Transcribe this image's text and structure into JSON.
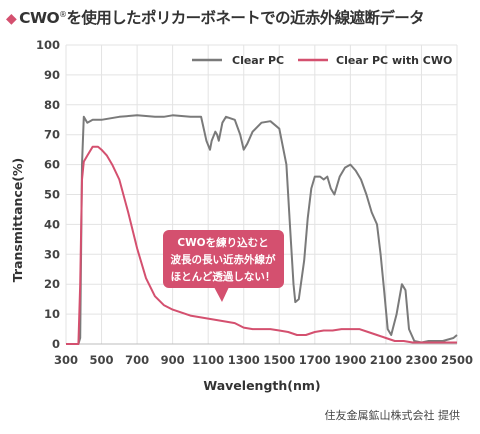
{
  "header": {
    "title_prefix": "CWO",
    "title_reg": "®",
    "title_suffix": "を使用したポリカーボネートでの近赤外線遮断データ"
  },
  "callout": {
    "lines": [
      "CWOを練り込むと",
      "波長の長い近赤外線が",
      "ほとんど透過しない！"
    ],
    "color": "#d4506f"
  },
  "credit": "住友金属鉱山株式会社 提供",
  "chart_data": {
    "type": "line",
    "xlabel": "Wavelength(nm)",
    "ylabel": "Transmittance(%)",
    "xlim": [
      300,
      2500
    ],
    "ylim": [
      0,
      100
    ],
    "xticks": [
      300,
      500,
      700,
      900,
      1100,
      1300,
      1500,
      1700,
      1900,
      2100,
      2300,
      2500
    ],
    "yticks": [
      0,
      10,
      20,
      30,
      40,
      50,
      60,
      70,
      80,
      90,
      100
    ],
    "grid": true,
    "legend_position": "top-right",
    "series": [
      {
        "name": "Clear PC",
        "color": "#7a7a7a",
        "points": [
          [
            300,
            0
          ],
          [
            370,
            0
          ],
          [
            380,
            2
          ],
          [
            390,
            60
          ],
          [
            400,
            76
          ],
          [
            420,
            74
          ],
          [
            450,
            75
          ],
          [
            500,
            75
          ],
          [
            600,
            76
          ],
          [
            700,
            76.5
          ],
          [
            800,
            76
          ],
          [
            850,
            76
          ],
          [
            900,
            76.5
          ],
          [
            1000,
            76
          ],
          [
            1060,
            76
          ],
          [
            1090,
            68
          ],
          [
            1110,
            65
          ],
          [
            1120,
            68
          ],
          [
            1140,
            71
          ],
          [
            1150,
            70
          ],
          [
            1160,
            68
          ],
          [
            1180,
            74
          ],
          [
            1200,
            76
          ],
          [
            1250,
            75
          ],
          [
            1280,
            70
          ],
          [
            1300,
            65
          ],
          [
            1320,
            67
          ],
          [
            1350,
            71
          ],
          [
            1400,
            74
          ],
          [
            1450,
            74.5
          ],
          [
            1500,
            72
          ],
          [
            1540,
            60
          ],
          [
            1560,
            40
          ],
          [
            1580,
            20
          ],
          [
            1590,
            14
          ],
          [
            1610,
            15
          ],
          [
            1640,
            28
          ],
          [
            1660,
            42
          ],
          [
            1680,
            52
          ],
          [
            1700,
            56
          ],
          [
            1730,
            56
          ],
          [
            1750,
            55
          ],
          [
            1770,
            56
          ],
          [
            1790,
            52
          ],
          [
            1810,
            50
          ],
          [
            1840,
            56
          ],
          [
            1870,
            59
          ],
          [
            1900,
            60
          ],
          [
            1930,
            58
          ],
          [
            1960,
            55
          ],
          [
            1990,
            50
          ],
          [
            2020,
            44
          ],
          [
            2050,
            40
          ],
          [
            2070,
            30
          ],
          [
            2090,
            18
          ],
          [
            2110,
            5
          ],
          [
            2130,
            3
          ],
          [
            2160,
            10
          ],
          [
            2190,
            20
          ],
          [
            2210,
            18
          ],
          [
            2230,
            5
          ],
          [
            2260,
            1
          ],
          [
            2300,
            0.5
          ],
          [
            2340,
            1
          ],
          [
            2380,
            1
          ],
          [
            2420,
            1
          ],
          [
            2450,
            1.5
          ],
          [
            2480,
            2
          ],
          [
            2500,
            3
          ]
        ]
      },
      {
        "name": "Clear PC with CWO",
        "color": "#d4506f",
        "points": [
          [
            300,
            0
          ],
          [
            370,
            0
          ],
          [
            380,
            20
          ],
          [
            390,
            55
          ],
          [
            400,
            61
          ],
          [
            420,
            63
          ],
          [
            450,
            66
          ],
          [
            480,
            66
          ],
          [
            500,
            65
          ],
          [
            530,
            63
          ],
          [
            560,
            60
          ],
          [
            600,
            55
          ],
          [
            650,
            44
          ],
          [
            700,
            32
          ],
          [
            750,
            22
          ],
          [
            800,
            16
          ],
          [
            850,
            13
          ],
          [
            900,
            11.5
          ],
          [
            950,
            10.5
          ],
          [
            1000,
            9.5
          ],
          [
            1050,
            9
          ],
          [
            1100,
            8.5
          ],
          [
            1150,
            8
          ],
          [
            1200,
            7.5
          ],
          [
            1250,
            7
          ],
          [
            1300,
            5.5
          ],
          [
            1350,
            5
          ],
          [
            1400,
            5
          ],
          [
            1450,
            5
          ],
          [
            1500,
            4.5
          ],
          [
            1550,
            4
          ],
          [
            1600,
            3
          ],
          [
            1650,
            3
          ],
          [
            1700,
            4
          ],
          [
            1750,
            4.5
          ],
          [
            1800,
            4.5
          ],
          [
            1850,
            5
          ],
          [
            1900,
            5
          ],
          [
            1950,
            5
          ],
          [
            2000,
            4
          ],
          [
            2050,
            3
          ],
          [
            2100,
            2
          ],
          [
            2150,
            1
          ],
          [
            2200,
            1
          ],
          [
            2250,
            0.5
          ],
          [
            2300,
            0.5
          ],
          [
            2400,
            0.5
          ],
          [
            2500,
            0.5
          ]
        ]
      }
    ]
  }
}
